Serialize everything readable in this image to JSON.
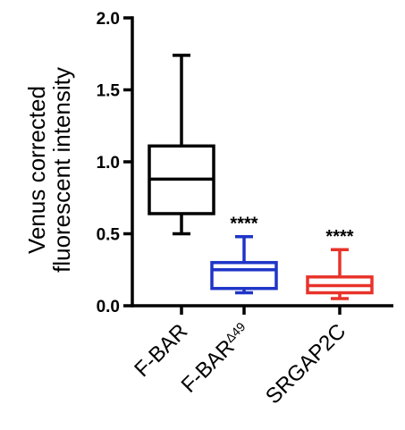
{
  "chart_data": {
    "type": "box",
    "ylabel_lines": [
      "Venus corrected",
      "fluorescent intensity"
    ],
    "ylim": [
      0.0,
      2.0
    ],
    "yticks": [
      0.0,
      0.5,
      1.0,
      1.5,
      2.0
    ],
    "ytick_labels": [
      "0.0",
      "0.5",
      "1.0",
      "1.5",
      "2.0"
    ],
    "categories": [
      {
        "label": "F-BAR",
        "superscript": ""
      },
      {
        "label": "F-BAR",
        "superscript": "Δ49"
      },
      {
        "label": "SRGAP2C",
        "superscript": ""
      }
    ],
    "series": [
      {
        "whisker_low": 0.5,
        "q1": 0.64,
        "median": 0.88,
        "q3": 1.11,
        "whisker_high": 1.74,
        "color": "#000000",
        "significance": ""
      },
      {
        "whisker_low": 0.09,
        "q1": 0.12,
        "median": 0.25,
        "q3": 0.3,
        "whisker_high": 0.48,
        "color": "#1f35c8",
        "significance": "****"
      },
      {
        "whisker_low": 0.05,
        "q1": 0.09,
        "median": 0.14,
        "q3": 0.2,
        "whisker_high": 0.39,
        "color": "#e8332a",
        "significance": "****"
      }
    ]
  }
}
